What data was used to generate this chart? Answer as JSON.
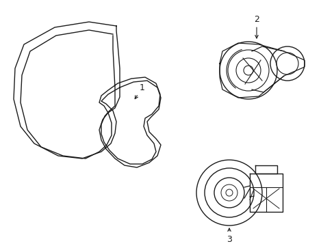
{
  "background_color": "#ffffff",
  "line_color": "#1a1a1a",
  "line_width": 1.0,
  "label_1": "1",
  "label_2": "2",
  "label_3": "3"
}
